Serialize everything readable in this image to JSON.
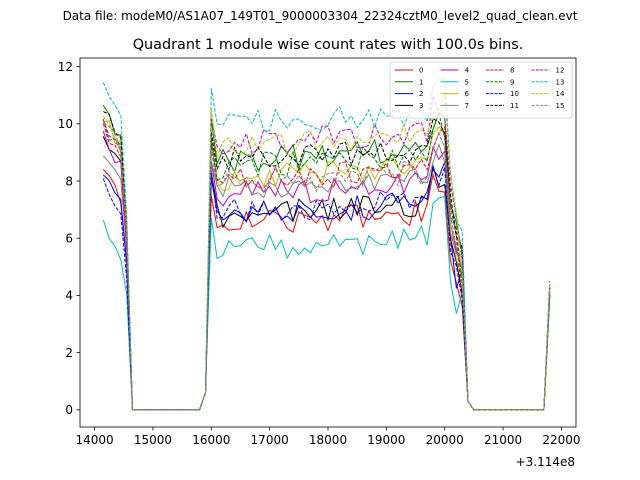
{
  "chart_data": {
    "type": "line",
    "suptitle": "Data file: modeM0/AS1A07_149T01_9000003304_22324cztM0_level2_quad_clean.evt",
    "title": "Quadrant 1 module wise count rates with 100.0s bins.",
    "xlabel": "",
    "ylabel": "",
    "x_offset_label": "+3.114e8",
    "xlim": [
      13750,
      22250
    ],
    "ylim": [
      -0.6,
      12.3
    ],
    "xticks": [
      14000,
      15000,
      16000,
      17000,
      18000,
      19000,
      20000,
      21000,
      22000
    ],
    "xtick_labels": [
      "14000",
      "15000",
      "16000",
      "17000",
      "18000",
      "19000",
      "20000",
      "21000",
      "22000"
    ],
    "yticks": [
      0,
      2,
      4,
      6,
      8,
      10,
      12
    ],
    "ytick_labels": [
      "0",
      "2",
      "4",
      "6",
      "8",
      "10",
      "12"
    ],
    "segments": [
      {
        "start": 14150,
        "end": 14650,
        "step": 100
      },
      {
        "start": 15800,
        "end": 20550,
        "step": 100
      },
      {
        "start": 21800,
        "end": 21800,
        "step": 100
      }
    ],
    "series": [
      {
        "name": "0",
        "color": "#ff0000",
        "dash": "solid",
        "low": 8.4,
        "plat": 6.5
      },
      {
        "name": "1",
        "color": "#008000",
        "dash": "solid",
        "low": 10.5,
        "plat": 8.7
      },
      {
        "name": "2",
        "color": "#0000ff",
        "dash": "solid",
        "low": 8.3,
        "plat": 6.8
      },
      {
        "name": "3",
        "color": "#000000",
        "dash": "solid",
        "low": 9.6,
        "plat": 6.8
      },
      {
        "name": "4",
        "color": "#bf00bf",
        "dash": "solid",
        "low": 9.5,
        "plat": 7.5
      },
      {
        "name": "5",
        "color": "#00bfbf",
        "dash": "solid",
        "low": 6.4,
        "plat": 5.6
      },
      {
        "name": "6",
        "color": "#bfbf00",
        "dash": "solid",
        "low": 10.2,
        "plat": 8.1
      },
      {
        "name": "7",
        "color": "#808080",
        "dash": "solid",
        "low": 9.0,
        "plat": 7.7
      },
      {
        "name": "8",
        "color": "#ff0000",
        "dash": "dashed",
        "low": 9.8,
        "plat": 8.0
      },
      {
        "name": "9",
        "color": "#008000",
        "dash": "dashed",
        "low": 10.0,
        "plat": 8.5
      },
      {
        "name": "10",
        "color": "#0000ff",
        "dash": "dashed",
        "low": 8.0,
        "plat": 6.9
      },
      {
        "name": "11",
        "color": "#000000",
        "dash": "dashed",
        "low": 10.6,
        "plat": 8.7
      },
      {
        "name": "12",
        "color": "#bf00bf",
        "dash": "dashed",
        "low": 10.0,
        "plat": 9.3
      },
      {
        "name": "13",
        "color": "#00bfbf",
        "dash": "dashed",
        "low": 11.5,
        "plat": 10.0
      },
      {
        "name": "14",
        "color": "#bfbf00",
        "dash": "dashed",
        "low": 10.3,
        "plat": 9.2
      },
      {
        "name": "15",
        "color": "#808080",
        "dash": "dashed",
        "low": 10.2,
        "plat": 7.9
      }
    ],
    "legend_position": "upper-right",
    "legend_columns": 4,
    "grid": false
  }
}
